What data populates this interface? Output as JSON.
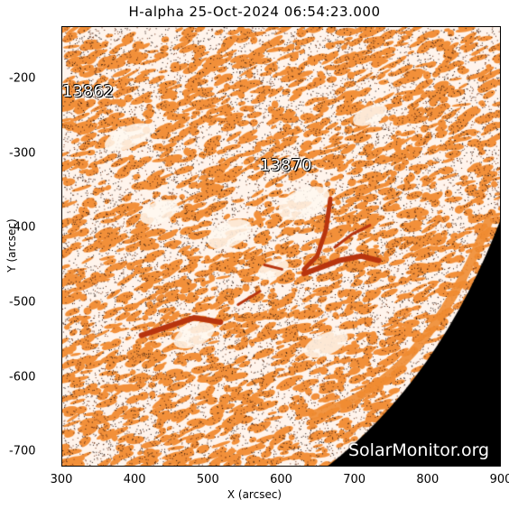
{
  "title": "H-alpha 25-Oct-2024 06:54:23.000",
  "x_axis": {
    "label": "X (arcsec)",
    "range": [
      300,
      900
    ],
    "ticks": [
      {
        "value": 300,
        "label": "300"
      },
      {
        "value": 400,
        "label": "400"
      },
      {
        "value": 500,
        "label": "500"
      },
      {
        "value": 600,
        "label": "600"
      },
      {
        "value": 700,
        "label": "700"
      },
      {
        "value": 800,
        "label": "800"
      },
      {
        "value": 900,
        "label": "900"
      }
    ]
  },
  "y_axis": {
    "label": "Y (arcsec)",
    "range": [
      -720,
      -130
    ],
    "ticks": [
      {
        "value": -200,
        "label": "-200"
      },
      {
        "value": -300,
        "label": "-300"
      },
      {
        "value": -400,
        "label": "-400"
      },
      {
        "value": -500,
        "label": "-500"
      },
      {
        "value": -600,
        "label": "-600"
      },
      {
        "value": -700,
        "label": "-700"
      }
    ]
  },
  "regions": [
    {
      "label": "13862",
      "x": 300,
      "y": -218
    },
    {
      "label": "13870",
      "x": 570,
      "y": -318
    }
  ],
  "watermark": "SolarMonitor.org",
  "colors": {
    "chromosphere": "#f2903a",
    "bright": "#fff4ec",
    "filament": "#b8350e",
    "space": "#000000"
  }
}
